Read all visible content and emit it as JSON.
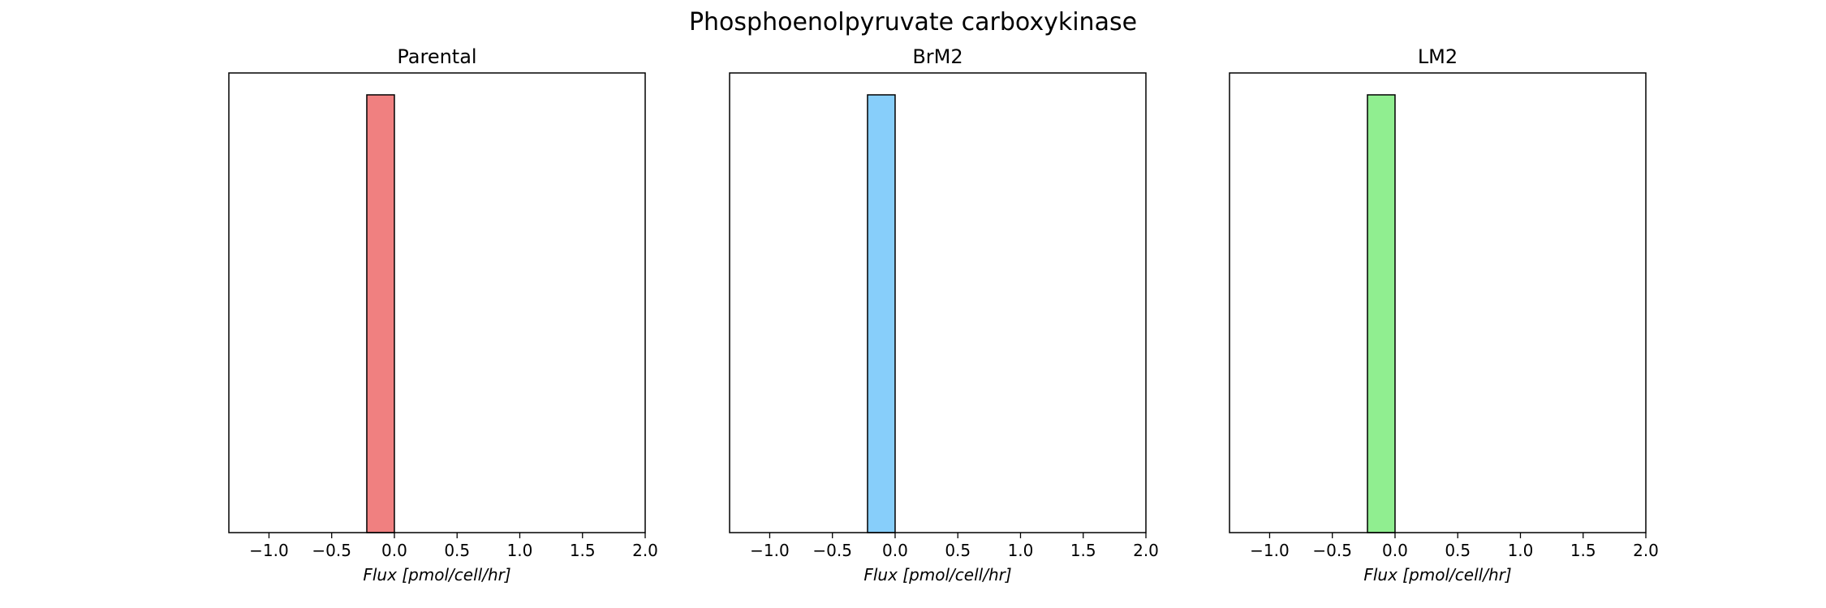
{
  "figure": {
    "suptitle": "Phosphoenolpyruvate carboxykinase"
  },
  "chart_data": [
    {
      "type": "bar",
      "title": "Parental",
      "xlabel": "Flux [pmol/cell/hr]",
      "ylabel": "",
      "xlim": [
        -1.32,
        2.0
      ],
      "ylim": [
        0,
        1.05
      ],
      "xticks": [
        -1.0,
        -0.5,
        0.0,
        0.5,
        1.0,
        1.5,
        2.0
      ],
      "xtick_labels": [
        "−1.0",
        "−0.5",
        "0.0",
        "0.5",
        "1.0",
        "1.5",
        "2.0"
      ],
      "yticks_visible": false,
      "grid": false,
      "bins": [
        {
          "x0": -0.22,
          "x1": 0.0,
          "value": 1.0
        }
      ],
      "color": "#f08080",
      "edgecolor": "#000000"
    },
    {
      "type": "bar",
      "title": "BrM2",
      "xlabel": "Flux [pmol/cell/hr]",
      "ylabel": "",
      "xlim": [
        -1.32,
        2.0
      ],
      "ylim": [
        0,
        1.05
      ],
      "xticks": [
        -1.0,
        -0.5,
        0.0,
        0.5,
        1.0,
        1.5,
        2.0
      ],
      "xtick_labels": [
        "−1.0",
        "−0.5",
        "0.0",
        "0.5",
        "1.0",
        "1.5",
        "2.0"
      ],
      "yticks_visible": false,
      "grid": false,
      "bins": [
        {
          "x0": -0.22,
          "x1": 0.0,
          "value": 1.0
        }
      ],
      "color": "#87cefa",
      "edgecolor": "#000000"
    },
    {
      "type": "bar",
      "title": "LM2",
      "xlabel": "Flux [pmol/cell/hr]",
      "ylabel": "",
      "xlim": [
        -1.32,
        2.0
      ],
      "ylim": [
        0,
        1.05
      ],
      "xticks": [
        -1.0,
        -0.5,
        0.0,
        0.5,
        1.0,
        1.5,
        2.0
      ],
      "xtick_labels": [
        "−1.0",
        "−0.5",
        "0.0",
        "0.5",
        "1.0",
        "1.5",
        "2.0"
      ],
      "yticks_visible": false,
      "grid": false,
      "bins": [
        {
          "x0": -0.22,
          "x1": 0.0,
          "value": 1.0
        }
      ],
      "color": "#90ee90",
      "edgecolor": "#000000"
    }
  ]
}
